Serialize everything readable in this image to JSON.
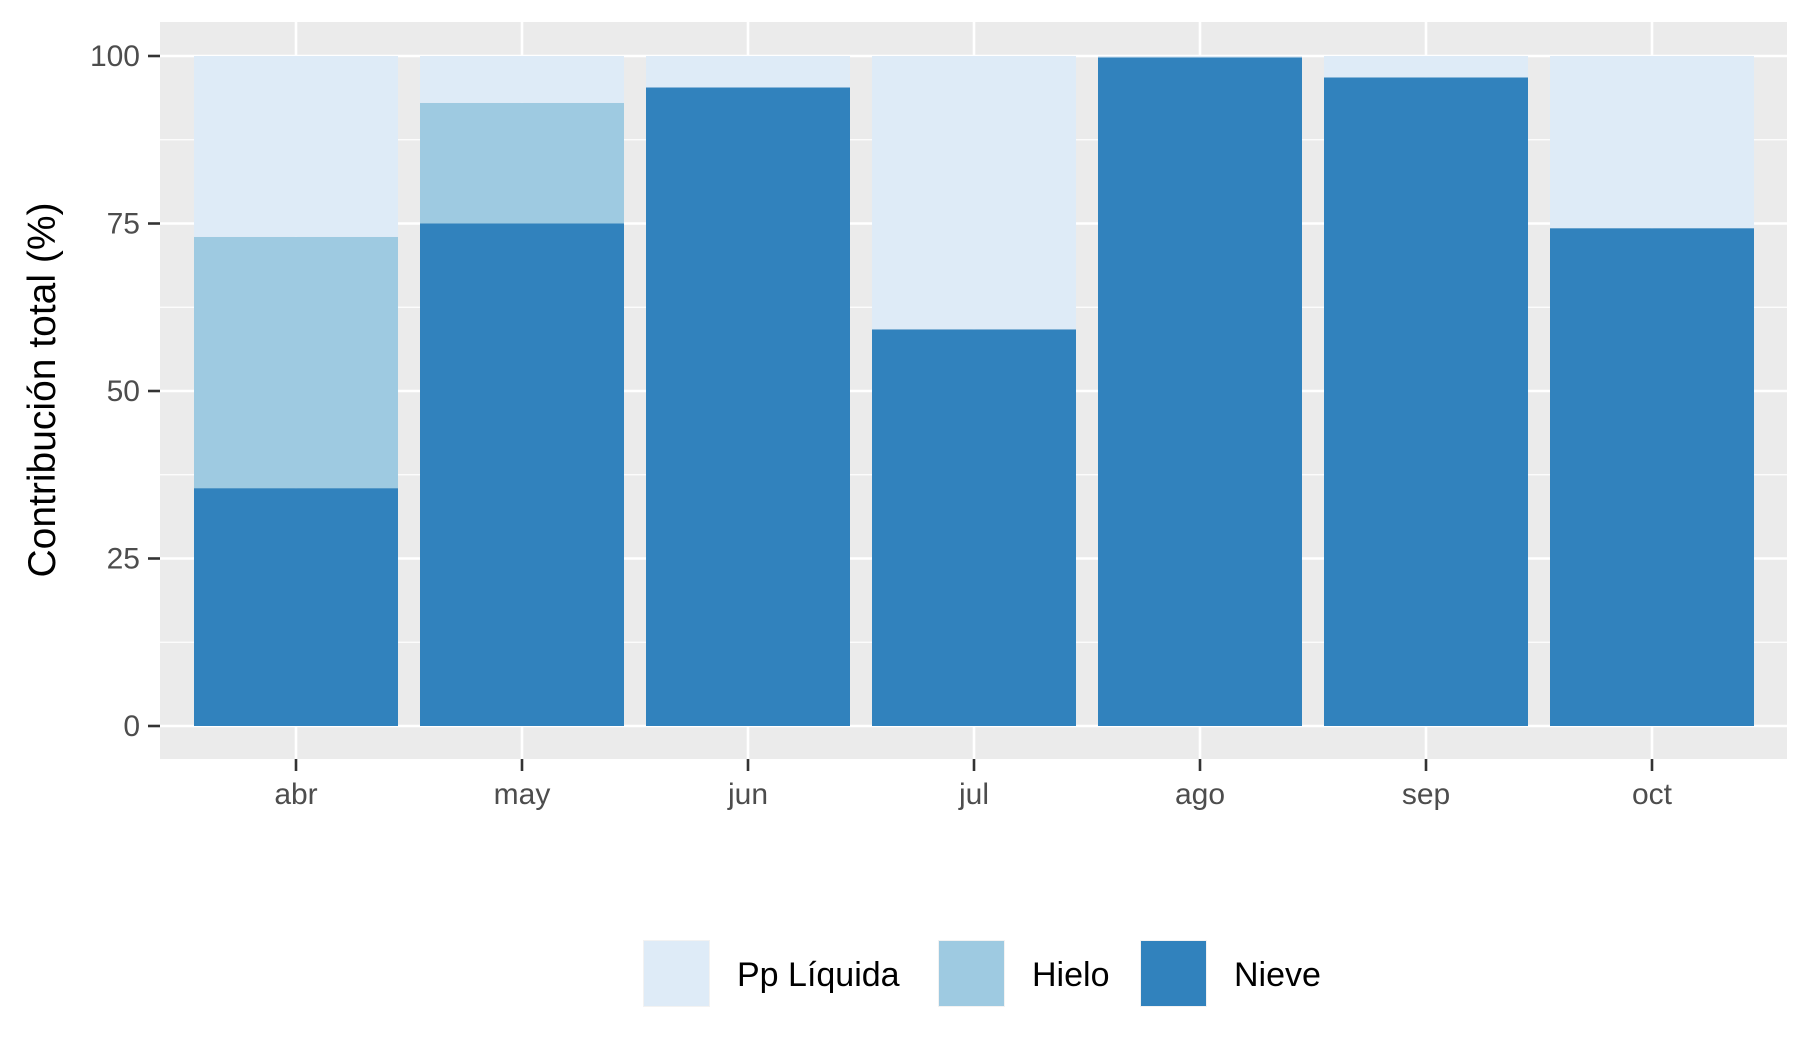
{
  "chart_data": {
    "type": "bar",
    "stacked": true,
    "title": "",
    "xlabel": "",
    "ylabel": "Contribución total (%)",
    "ylim": [
      -5,
      105
    ],
    "yticks": [
      0,
      25,
      50,
      75,
      100
    ],
    "grid": true,
    "legend_position": "bottom",
    "categories": [
      "abr",
      "may",
      "jun",
      "jul",
      "ago",
      "sep",
      "oct"
    ],
    "series": [
      {
        "name": "Nieve",
        "color": "#3182bd",
        "values": [
          35.5,
          75,
          95.3,
          59.2,
          99.8,
          96.8,
          74.3
        ]
      },
      {
        "name": "Hielo",
        "color": "#9ecae1",
        "values": [
          37.5,
          18,
          0,
          0,
          0,
          0,
          0
        ]
      },
      {
        "name": "Pp Líquida",
        "color": "#deebf7",
        "values": [
          27,
          7,
          4.7,
          40.8,
          0.2,
          3.2,
          25.7
        ]
      }
    ],
    "legend_order": [
      "Pp Líquida",
      "Hielo",
      "Nieve"
    ]
  }
}
